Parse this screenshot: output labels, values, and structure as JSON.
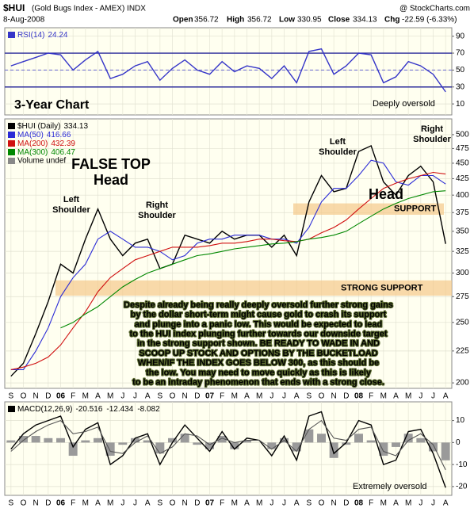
{
  "header": {
    "symbol": "$HUI",
    "name": "(Gold Bugs Index - AMEX) INDX",
    "credit": "@ StockCharts.com",
    "date": "8-Aug-2008",
    "open_label": "Open",
    "open": 356.72,
    "high_label": "High",
    "high": 356.72,
    "low_label": "Low",
    "low": 330.95,
    "close_label": "Close",
    "chg_label": "Chg",
    "chg": "-22.59 (-6.33%)"
  },
  "chart_data": [
    {
      "type": "line",
      "panel": "rsi",
      "categories": [
        "S",
        "O",
        "N",
        "D",
        "06",
        "F",
        "M",
        "A",
        "M",
        "J",
        "J",
        "A",
        "S",
        "O",
        "N",
        "D",
        "07",
        "F",
        "M",
        "A",
        "M",
        "J",
        "J",
        "A",
        "S",
        "O",
        "N",
        "D",
        "08",
        "F",
        "M",
        "A",
        "M",
        "J",
        "J",
        "A"
      ],
      "series": [
        {
          "name": "RSI(14)",
          "color": "#3535c8",
          "values": [
            55,
            60,
            65,
            70,
            68,
            50,
            62,
            72,
            40,
            45,
            55,
            60,
            38,
            52,
            62,
            50,
            45,
            60,
            48,
            55,
            52,
            40,
            55,
            35,
            72,
            75,
            45,
            55,
            70,
            68,
            35,
            42,
            60,
            55,
            45,
            24.24
          ]
        }
      ],
      "ylim": [
        -3,
        100
      ],
      "yticks": [
        10,
        30,
        50,
        70,
        90
      ],
      "reference_lines": [
        30,
        50,
        70
      ],
      "grid": true,
      "annotations": [
        {
          "lines": [
            "3-Year Chart"
          ]
        },
        {
          "lines": [
            "Deeply oversold"
          ]
        }
      ]
    },
    {
      "type": "line",
      "panel": "price",
      "log": true,
      "categories": [
        "S",
        "O",
        "N",
        "D",
        "06",
        "F",
        "M",
        "A",
        "M",
        "J",
        "J",
        "A",
        "S",
        "O",
        "N",
        "D",
        "07",
        "F",
        "M",
        "A",
        "M",
        "J",
        "J",
        "A",
        "S",
        "O",
        "N",
        "D",
        "08",
        "F",
        "M",
        "A",
        "M",
        "J",
        "J",
        "A"
      ],
      "series": [
        {
          "name": "$HUI (Daily)",
          "color": "#000000",
          "values": [
            205,
            215,
            240,
            270,
            310,
            300,
            340,
            380,
            340,
            320,
            335,
            340,
            305,
            310,
            345,
            340,
            335,
            350,
            340,
            345,
            345,
            330,
            345,
            320,
            390,
            430,
            405,
            410,
            470,
            480,
            420,
            400,
            430,
            445,
            420,
            334.13
          ]
        },
        {
          "name": "MA(50)",
          "color": "#2b2bd6",
          "values": [
            210,
            210,
            225,
            245,
            275,
            295,
            310,
            340,
            350,
            340,
            330,
            330,
            325,
            315,
            320,
            335,
            340,
            340,
            345,
            345,
            345,
            340,
            340,
            335,
            355,
            390,
            410,
            410,
            430,
            455,
            450,
            420,
            415,
            430,
            430,
            416.66
          ]
        },
        {
          "name": "MA(200)",
          "color": "#d01010",
          "values": [
            210,
            212,
            215,
            220,
            230,
            245,
            260,
            280,
            295,
            305,
            315,
            320,
            325,
            330,
            330,
            330,
            332,
            335,
            335,
            337,
            340,
            340,
            338,
            337,
            340,
            348,
            355,
            365,
            380,
            395,
            410,
            418,
            425,
            430,
            435,
            432.39
          ]
        },
        {
          "name": "MA(300)",
          "color": "#008800",
          "values": [
            null,
            null,
            null,
            null,
            245,
            250,
            258,
            265,
            275,
            285,
            293,
            300,
            305,
            310,
            315,
            320,
            322,
            325,
            328,
            330,
            332,
            334,
            335,
            337,
            340,
            342,
            345,
            350,
            360,
            370,
            380,
            388,
            395,
            400,
            405,
            406.47
          ]
        }
      ],
      "volume_label": "Volume undef",
      "ylim": [
        196,
        530
      ],
      "yticks": [
        200,
        225,
        250,
        275,
        300,
        325,
        350,
        375,
        400,
        425,
        450,
        475,
        500
      ],
      "grid": true,
      "bands": [
        {
          "label": "SUPPORT",
          "range": [
            372,
            388
          ]
        },
        {
          "label": "STRONG SUPPORT",
          "range": [
            276,
            292
          ]
        }
      ],
      "annotations": [
        {
          "lines": [
            "FALSE TOP"
          ]
        },
        {
          "lines": [
            "Head"
          ]
        },
        {
          "lines": [
            "Left",
            "Shoulder"
          ]
        },
        {
          "lines": [
            "Right",
            "Shoulder"
          ]
        },
        {
          "lines": [
            "Left",
            "Shoulder"
          ]
        },
        {
          "lines": [
            "Right",
            "Shoulder"
          ]
        },
        {
          "lines": [
            "Head"
          ]
        },
        {
          "lines": [
            "Despite already being really deeply oversold further strong gains",
            "by the dollar short-term might cause gold to crash its support",
            "and plunge into a panic low. This would be expected to lead",
            "to the HUI index plunging further towards our downside target",
            "in the strong support shown. BE READY TO WADE IN AND",
            "SCOOP UP STOCK AND OPTIONS BY THE BUCKETLOAD",
            "WHEN/IF THE INDEX GOES BELOW 300, as this should be",
            "the low. You may need to move quickly as this is likely",
            "to be an intraday phenomenon that ends with a strong close."
          ]
        }
      ]
    },
    {
      "type": "line",
      "panel": "macd",
      "categories": [
        "S",
        "O",
        "N",
        "D",
        "06",
        "F",
        "M",
        "A",
        "M",
        "J",
        "J",
        "A",
        "S",
        "O",
        "N",
        "D",
        "07",
        "F",
        "M",
        "A",
        "M",
        "J",
        "J",
        "A",
        "S",
        "O",
        "N",
        "D",
        "08",
        "F",
        "M",
        "A",
        "M",
        "J",
        "J",
        "A"
      ],
      "series": [
        {
          "name": "MACD(12,26,9)",
          "color": "#000000",
          "values": [
            -3,
            4,
            8,
            10,
            12,
            -2,
            6,
            9,
            -10,
            -6,
            2,
            4,
            -10,
            0,
            8,
            2,
            -4,
            5,
            -3,
            2,
            1,
            -6,
            3,
            -8,
            12,
            14,
            -5,
            0,
            10,
            8,
            -10,
            -8,
            5,
            6,
            -5,
            -20.516
          ]
        },
        {
          "color": "#555555",
          "values": [
            -4,
            1,
            5,
            8,
            10,
            4,
            5,
            7,
            -4,
            -5,
            0,
            3,
            -5,
            -2,
            4,
            3,
            -1,
            2,
            0,
            1,
            1,
            -3,
            1,
            -4,
            6,
            10,
            2,
            1,
            6,
            7,
            -4,
            -6,
            1,
            4,
            -1,
            -12.434
          ]
        }
      ],
      "histogram_values": [
        1,
        3,
        3,
        2,
        2,
        -6,
        1,
        2,
        -6,
        -1,
        2,
        1,
        -5,
        2,
        4,
        -1,
        -3,
        3,
        -3,
        1,
        0,
        -3,
        2,
        -4,
        6,
        4,
        -7,
        -1,
        4,
        1,
        -6,
        -2,
        4,
        2,
        -4,
        -8.082
      ],
      "histogram_color": "#9a9a9a",
      "ylim": [
        -24,
        18.5
      ],
      "yticks": [
        -20,
        -10,
        0,
        10
      ],
      "grid": true,
      "annotations": [
        {
          "lines": [
            "Extremely oversold"
          ]
        }
      ]
    }
  ]
}
